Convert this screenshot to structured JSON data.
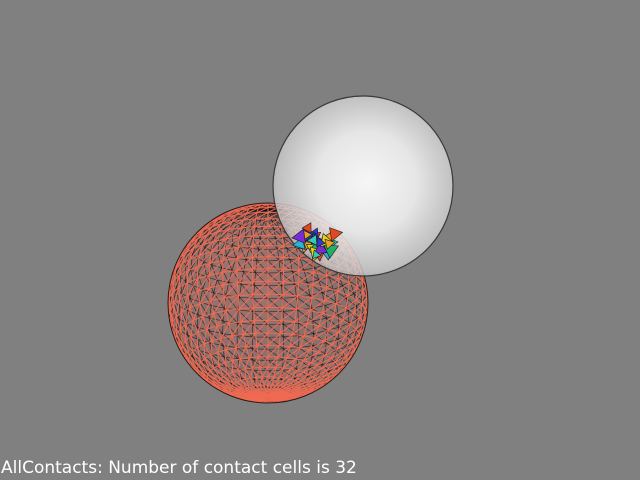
{
  "caption": {
    "text": "AllContacts: Number of contact cells is 32"
  },
  "scene": {
    "background_color": "#808080",
    "mesh_sphere": {
      "wire_color": "#f06a52",
      "edge_color": "#111111"
    },
    "glass_sphere": {
      "color": "#ffffff"
    },
    "contact_patch": {
      "cell_count": 32,
      "palette": [
        "#2ab3d4",
        "#1fb06a",
        "#e8d21e",
        "#e04822",
        "#2b3fd6",
        "#7a2bd6",
        "#36c9b8",
        "#f0a020"
      ]
    }
  }
}
